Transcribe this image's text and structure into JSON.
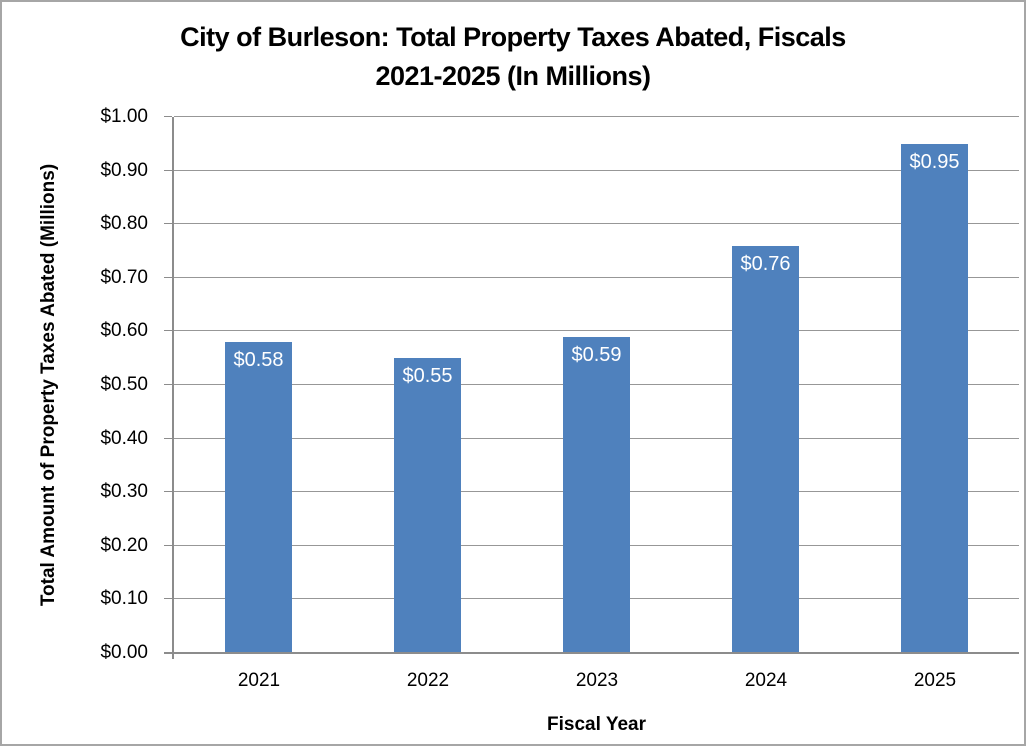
{
  "window": {
    "background_color": "#FFFFFF",
    "border_color": "#A6A6A6"
  },
  "chart_data": {
    "type": "bar",
    "title": "City of Burleson: Total Property Taxes Abated, Fiscals 2021-2025 (In Millions)",
    "title_lines": [
      "City of Burleson: Total Property Taxes Abated, Fiscals",
      "2021-2025 (In Millions)"
    ],
    "xlabel": "Fiscal Year",
    "ylabel": "Total Amount of Property Taxes Abated (Millions)",
    "categories": [
      "2021",
      "2022",
      "2023",
      "2024",
      "2025"
    ],
    "values": [
      0.58,
      0.55,
      0.59,
      0.76,
      0.95
    ],
    "bar_labels": [
      "$0.58",
      "$0.55",
      "$0.59",
      "$0.76",
      "$0.95"
    ],
    "ylim": [
      0,
      1.0
    ],
    "ytick_step": 0.1,
    "ytick_labels": [
      "$0.00",
      "$0.10",
      "$0.20",
      "$0.30",
      "$0.40",
      "$0.50",
      "$0.60",
      "$0.70",
      "$0.80",
      "$0.90",
      "$1.00"
    ],
    "grid": true,
    "legend": "none",
    "colors": {
      "bar_fill": "#4F81BD",
      "bar_label_text": "#FFFFFF",
      "gridline": "#979797",
      "axis_line": "#8C8C8C",
      "text": "#000000"
    }
  }
}
